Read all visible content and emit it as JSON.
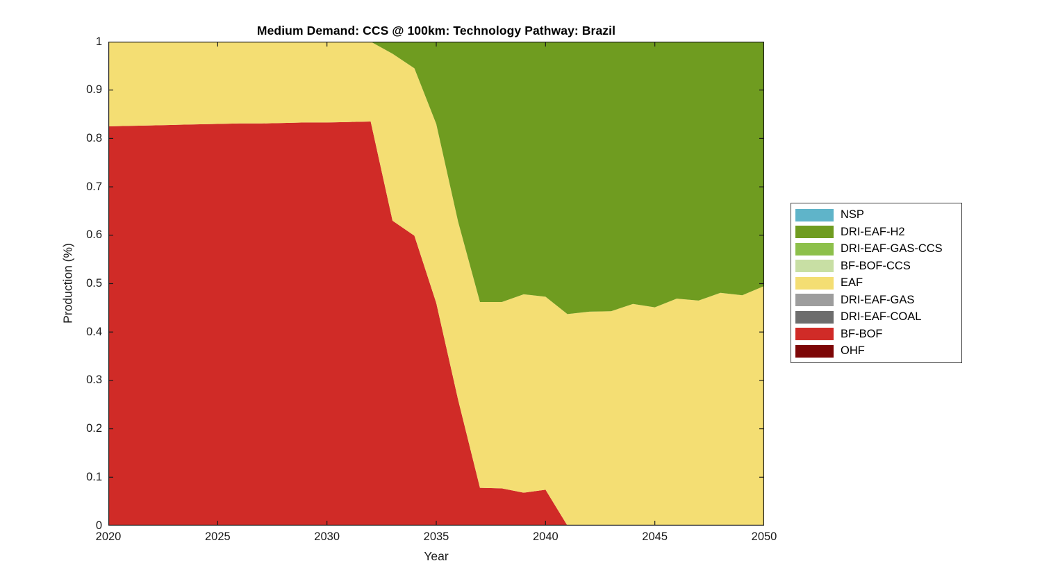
{
  "chart_data": {
    "type": "area",
    "stacked": true,
    "title": "Medium Demand: CCS @ 100km: Technology Pathway: Brazil",
    "xlabel": "Year",
    "ylabel": "Production (%)",
    "xlim": [
      2020,
      2050
    ],
    "ylim": [
      0,
      1
    ],
    "grid": false,
    "axis_color": "#1a1a1a",
    "x_ticks": [
      2020,
      2025,
      2030,
      2035,
      2040,
      2045,
      2050
    ],
    "x_tick_labels": [
      "2020",
      "2025",
      "2030",
      "2035",
      "2040",
      "2045",
      "2050"
    ],
    "y_ticks": [
      0,
      0.1,
      0.2,
      0.3,
      0.4,
      0.5,
      0.6,
      0.7,
      0.8,
      0.9,
      1
    ],
    "y_tick_labels": [
      "0",
      "0.1",
      "0.2",
      "0.3",
      "0.4",
      "0.5",
      "0.6",
      "0.7",
      "0.8",
      "0.9",
      "1"
    ],
    "x": [
      2020,
      2021,
      2022,
      2023,
      2024,
      2025,
      2026,
      2027,
      2028,
      2029,
      2030,
      2031,
      2032,
      2033,
      2034,
      2035,
      2036,
      2037,
      2038,
      2039,
      2040,
      2041,
      2042,
      2043,
      2044,
      2045,
      2046,
      2047,
      2048,
      2049,
      2050
    ],
    "series": [
      {
        "name": "OHF",
        "color": "#7D0606",
        "values": [
          0,
          0,
          0,
          0,
          0,
          0,
          0,
          0,
          0,
          0,
          0,
          0,
          0,
          0,
          0,
          0,
          0,
          0,
          0,
          0,
          0,
          0,
          0,
          0,
          0,
          0,
          0,
          0,
          0,
          0,
          0
        ]
      },
      {
        "name": "BF-BOF",
        "color": "#D02B27",
        "values": [
          0.825,
          0.826,
          0.827,
          0.828,
          0.829,
          0.83,
          0.831,
          0.831,
          0.832,
          0.833,
          0.833,
          0.834,
          0.835,
          0.63,
          0.599,
          0.46,
          0.26,
          0.078,
          0.077,
          0.068,
          0.074,
          0,
          0,
          0,
          0,
          0,
          0,
          0,
          0,
          0,
          0
        ]
      },
      {
        "name": "DRI-EAF-COAL",
        "color": "#6D6D6D",
        "values": [
          0,
          0,
          0,
          0,
          0,
          0,
          0,
          0,
          0,
          0,
          0,
          0,
          0,
          0,
          0,
          0,
          0,
          0,
          0,
          0,
          0,
          0,
          0,
          0,
          0,
          0,
          0,
          0,
          0,
          0,
          0
        ]
      },
      {
        "name": "DRI-EAF-GAS",
        "color": "#9D9D9D",
        "values": [
          0,
          0,
          0,
          0,
          0,
          0,
          0,
          0,
          0,
          0,
          0,
          0,
          0,
          0,
          0,
          0,
          0,
          0,
          0,
          0,
          0,
          0,
          0,
          0,
          0,
          0,
          0,
          0,
          0,
          0,
          0
        ]
      },
      {
        "name": "EAF",
        "color": "#F4DE73",
        "values": [
          0.175,
          0.174,
          0.173,
          0.172,
          0.171,
          0.17,
          0.169,
          0.169,
          0.168,
          0.167,
          0.167,
          0.166,
          0.165,
          0.345,
          0.346,
          0.37,
          0.368,
          0.384,
          0.385,
          0.41,
          0.399,
          0.437,
          0.442,
          0.443,
          0.458,
          0.451,
          0.469,
          0.465,
          0.481,
          0.476,
          0.495
        ]
      },
      {
        "name": "BF-BOF-CCS",
        "color": "#C8DFA4",
        "values": [
          0,
          0,
          0,
          0,
          0,
          0,
          0,
          0,
          0,
          0,
          0,
          0,
          0,
          0,
          0,
          0,
          0,
          0,
          0,
          0,
          0,
          0,
          0,
          0,
          0,
          0,
          0,
          0,
          0,
          0,
          0
        ]
      },
      {
        "name": "DRI-EAF-GAS-CCS",
        "color": "#8DC04B",
        "values": [
          0,
          0,
          0,
          0,
          0,
          0,
          0,
          0,
          0,
          0,
          0,
          0,
          0,
          0,
          0,
          0,
          0,
          0,
          0,
          0,
          0,
          0,
          0,
          0,
          0,
          0,
          0,
          0,
          0,
          0,
          0
        ]
      },
      {
        "name": "DRI-EAF-H2",
        "color": "#6F9C20",
        "values": [
          0,
          0,
          0,
          0,
          0,
          0,
          0,
          0,
          0,
          0,
          0,
          0,
          0,
          0.025,
          0.055,
          0.17,
          0.372,
          0.538,
          0.538,
          0.522,
          0.527,
          0.563,
          0.558,
          0.557,
          0.542,
          0.549,
          0.531,
          0.535,
          0.519,
          0.524,
          0.505
        ]
      },
      {
        "name": "NSP",
        "color": "#5FB4C9",
        "values": [
          0,
          0,
          0,
          0,
          0,
          0,
          0,
          0,
          0,
          0,
          0,
          0,
          0,
          0,
          0,
          0,
          0,
          0,
          0,
          0,
          0,
          0,
          0,
          0,
          0,
          0,
          0,
          0,
          0,
          0,
          0
        ]
      }
    ],
    "legend": {
      "position": "right",
      "items": [
        {
          "label": "NSP",
          "color": "#5FB4C9"
        },
        {
          "label": "DRI-EAF-H2",
          "color": "#6F9C20"
        },
        {
          "label": "DRI-EAF-GAS-CCS",
          "color": "#8DC04B"
        },
        {
          "label": "BF-BOF-CCS",
          "color": "#C8DFA4"
        },
        {
          "label": "EAF",
          "color": "#F4DE73"
        },
        {
          "label": "DRI-EAF-GAS",
          "color": "#9D9D9D"
        },
        {
          "label": "DRI-EAF-COAL",
          "color": "#6D6D6D"
        },
        {
          "label": "BF-BOF",
          "color": "#D02B27"
        },
        {
          "label": "OHF",
          "color": "#7D0606"
        }
      ]
    }
  }
}
